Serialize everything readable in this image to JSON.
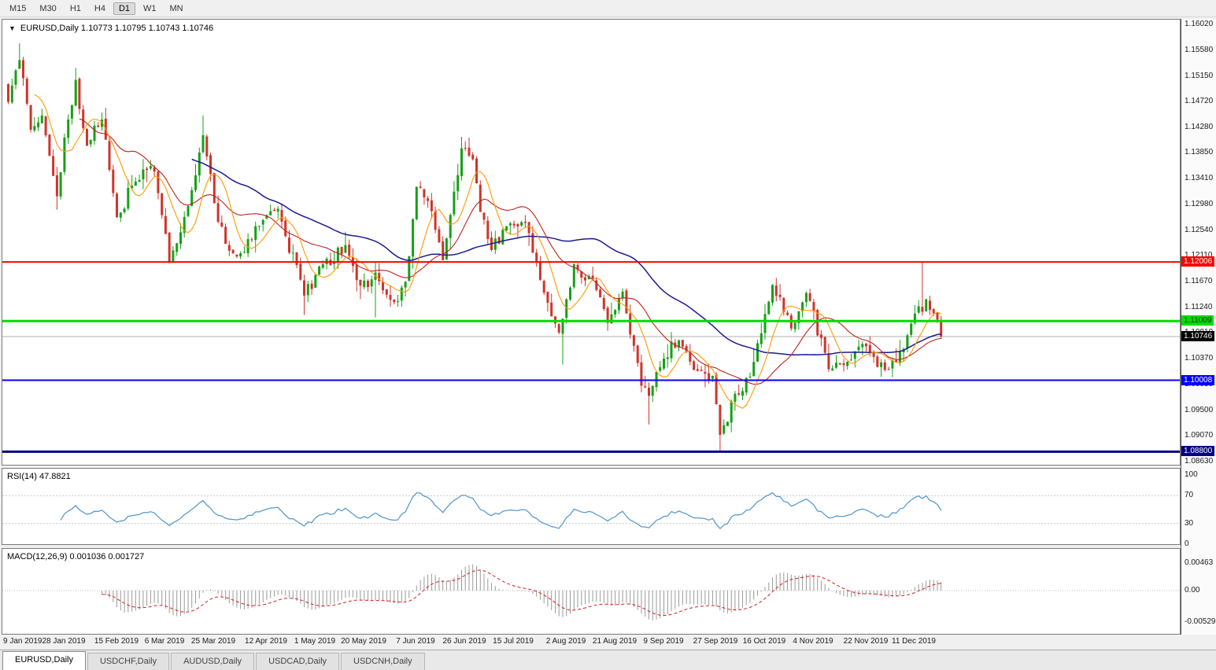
{
  "colors": {
    "up": "#16a016",
    "down": "#d0342a",
    "ma_fast": "#ff9900",
    "ma_mid": "#c22020",
    "ma_slow": "#1b1b8f",
    "rsi_line": "#4f94cd",
    "macd_hist": "#9a9a9a",
    "macd_signal": "#d02020",
    "current_line": "#b0b0b0"
  },
  "toolbar": {
    "timeframes": [
      "M15",
      "M30",
      "H1",
      "H4",
      "D1",
      "W1",
      "MN"
    ],
    "selected": "D1"
  },
  "chart_header": {
    "icon": "▼",
    "title": "EURUSD,Daily 1.10773 1.10795 1.10743 1.10746"
  },
  "price_axis": {
    "labels": [
      "1.16020",
      "1.15580",
      "1.15150",
      "1.14720",
      "1.14280",
      "1.13850",
      "1.13410",
      "1.12980",
      "1.12540",
      "1.12110",
      "1.11670",
      "1.11240",
      "1.10810",
      "1.10370",
      "1.09930",
      "1.09500",
      "1.09070",
      "1.08630"
    ]
  },
  "levels": [
    {
      "value": "1.12006",
      "price": 1.12006,
      "color": "#ff0000",
      "text_color": "#ffffff",
      "width": 2,
      "style": "line"
    },
    {
      "value": "1.11009",
      "price": 1.11009,
      "color": "#00dd00",
      "text_color": "#003300",
      "width": 3,
      "style": "line"
    },
    {
      "value": "1.10746",
      "price": 1.10746,
      "color": "#000000",
      "text_color": "#ffffff",
      "width": 1,
      "style": "current"
    },
    {
      "value": "1.10008",
      "price": 1.10008,
      "color": "#0000ff",
      "text_color": "#ffffff",
      "width": 2,
      "style": "line"
    },
    {
      "value": "1.08800",
      "price": 1.088,
      "color": "#000080",
      "text_color": "#ffffff",
      "width": 3,
      "style": "line"
    }
  ],
  "rsi_panel": {
    "label": "RSI(14) 47.8821",
    "axis_labels": [
      "100",
      "70",
      "30",
      "0"
    ],
    "levels": [
      100,
      70,
      30,
      0
    ],
    "gridlines": [
      70,
      30
    ]
  },
  "macd_panel": {
    "label": "MACD(12,26,9) 0.001036 0.001727",
    "axis_labels": [
      "0.00463",
      "0.00",
      "-0.00529"
    ],
    "axis_values": [
      0.00463,
      0,
      -0.00529
    ]
  },
  "tabs": [
    {
      "label": "EURUSD,Daily",
      "active": true
    },
    {
      "label": "USDCHF,Daily",
      "active": false
    },
    {
      "label": "AUDUSD,Daily",
      "active": false
    },
    {
      "label": "USDCAD,Daily",
      "active": false
    },
    {
      "label": "USDCNH,Daily",
      "active": false
    }
  ],
  "chart_data": {
    "type": "candlestick",
    "symbol": "EURUSD",
    "timeframe": "Daily",
    "ohlc_display": {
      "open": "1.10773",
      "high": "1.10795",
      "low": "1.10743",
      "close": "1.10746"
    },
    "bar_count": 250,
    "price_range": {
      "top": 1.161,
      "bottom": 1.0858
    },
    "current_price": 1.10746,
    "horizontal_levels": [
      1.12006,
      1.11009,
      1.10008,
      1.088
    ],
    "waypoints": [
      [
        0,
        1.147
      ],
      [
        3,
        1.1545
      ],
      [
        6,
        1.142
      ],
      [
        9,
        1.145
      ],
      [
        13,
        1.131
      ],
      [
        15,
        1.1415
      ],
      [
        18,
        1.1505
      ],
      [
        21,
        1.14
      ],
      [
        25,
        1.144
      ],
      [
        29,
        1.1275
      ],
      [
        33,
        1.133
      ],
      [
        38,
        1.1365
      ],
      [
        40,
        1.132
      ],
      [
        43,
        1.12
      ],
      [
        46,
        1.125
      ],
      [
        49,
        1.1325
      ],
      [
        52,
        1.1415
      ],
      [
        55,
        1.13
      ],
      [
        58,
        1.123
      ],
      [
        62,
        1.1215
      ],
      [
        67,
        1.1265
      ],
      [
        72,
        1.129
      ],
      [
        79,
        1.1145
      ],
      [
        84,
        1.1195
      ],
      [
        90,
        1.1225
      ],
      [
        94,
        1.116
      ],
      [
        98,
        1.118
      ],
      [
        103,
        1.113
      ],
      [
        106,
        1.1165
      ],
      [
        109,
        1.133
      ],
      [
        112,
        1.1305
      ],
      [
        116,
        1.12
      ],
      [
        121,
        1.139
      ],
      [
        124,
        1.137
      ],
      [
        126,
        1.1285
      ],
      [
        129,
        1.1225
      ],
      [
        133,
        1.126
      ],
      [
        138,
        1.127
      ],
      [
        143,
        1.115
      ],
      [
        147,
        1.108
      ],
      [
        151,
        1.1195
      ],
      [
        156,
        1.117
      ],
      [
        160,
        1.1095
      ],
      [
        164,
        1.115
      ],
      [
        169,
        1.099
      ],
      [
        171,
        1.0975
      ],
      [
        175,
        1.104
      ],
      [
        179,
        1.107
      ],
      [
        184,
        1.1015
      ],
      [
        188,
        1.1005
      ],
      [
        190,
        1.0905
      ],
      [
        194,
        1.098
      ],
      [
        198,
        1.1005
      ],
      [
        204,
        1.1165
      ],
      [
        206,
        1.1145
      ],
      [
        209,
        1.1085
      ],
      [
        213,
        1.115
      ],
      [
        219,
        1.102
      ],
      [
        223,
        1.1025
      ],
      [
        228,
        1.106
      ],
      [
        234,
        1.102
      ],
      [
        239,
        1.1055
      ],
      [
        243,
        1.1125
      ],
      [
        244,
        1.112
      ],
      [
        245,
        1.114
      ],
      [
        247,
        1.111
      ],
      [
        249,
        1.10746
      ]
    ],
    "wick_overrides": [
      [
        3,
        "high",
        1.157
      ],
      [
        13,
        "low",
        1.1289
      ],
      [
        52,
        "high",
        1.1448
      ],
      [
        79,
        "low",
        1.1111
      ],
      [
        98,
        "low",
        1.1107
      ],
      [
        121,
        "high",
        1.1412
      ],
      [
        148,
        "low",
        1.1027
      ],
      [
        171,
        "low",
        1.0926
      ],
      [
        190,
        "low",
        1.0879
      ],
      [
        244,
        "high",
        1.1199
      ]
    ],
    "date_labels": [
      {
        "text": "9 Jan 2019",
        "index": 2
      },
      {
        "text": "28 Jan 2019",
        "index": 15
      },
      {
        "text": "15 Feb 2019",
        "index": 29
      },
      {
        "text": "6 Mar 2019",
        "index": 42
      },
      {
        "text": "25 Mar 2019",
        "index": 55
      },
      {
        "text": "12 Apr 2019",
        "index": 69
      },
      {
        "text": "1 May 2019",
        "index": 82
      },
      {
        "text": "20 May 2019",
        "index": 95
      },
      {
        "text": "7 Jun 2019",
        "index": 109
      },
      {
        "text": "26 Jun 2019",
        "index": 122
      },
      {
        "text": "15 Jul 2019",
        "index": 135
      },
      {
        "text": "2 Aug 2019",
        "index": 149
      },
      {
        "text": "21 Aug 2019",
        "index": 162
      },
      {
        "text": "9 Sep 2019",
        "index": 175
      },
      {
        "text": "27 Sep 2019",
        "index": 189
      },
      {
        "text": "16 Oct 2019",
        "index": 202
      },
      {
        "text": "4 Nov 2019",
        "index": 215
      },
      {
        "text": "22 Nov 2019",
        "index": 229
      },
      {
        "text": "11 Dec 2019",
        "index": 242
      }
    ],
    "indicators": {
      "rsi": {
        "period": 14,
        "last_value": 47.8821
      },
      "macd": {
        "fast": 12,
        "slow": 26,
        "signal": 9,
        "last_values": [
          0.001036,
          0.001727
        ]
      }
    }
  }
}
